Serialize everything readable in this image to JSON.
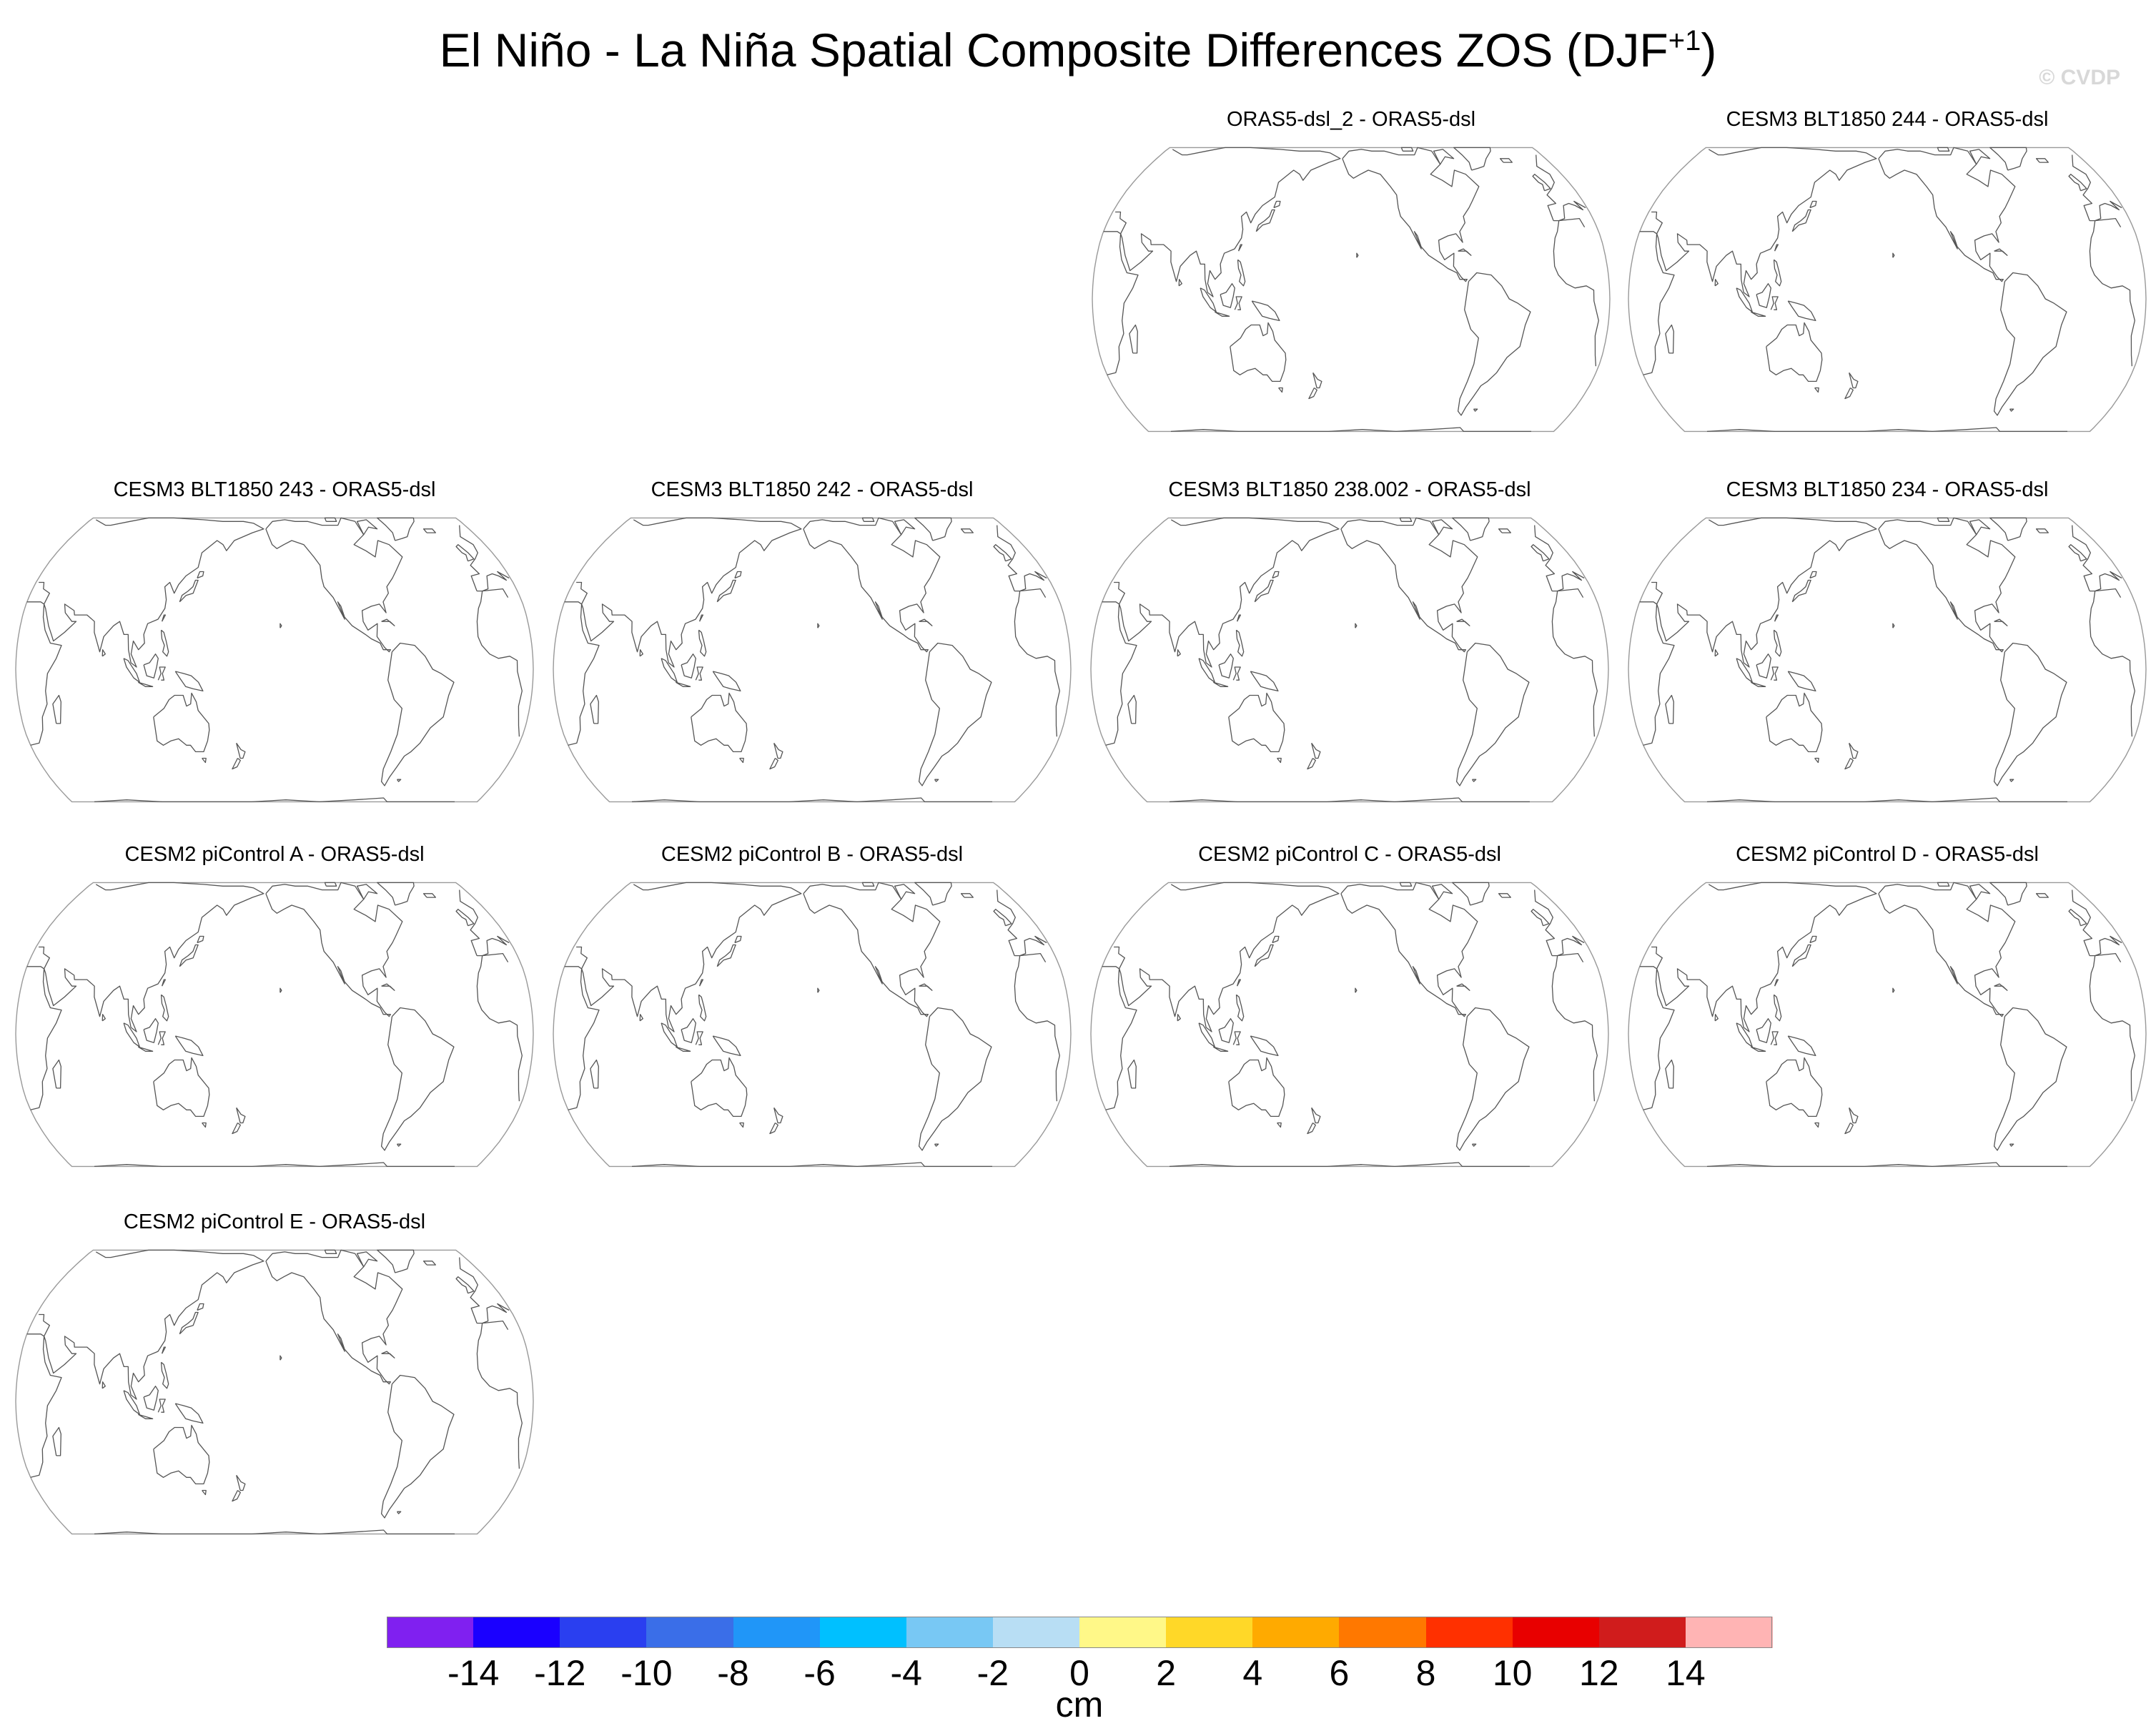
{
  "title": {
    "main": "El Niño - La Niña Spatial Composite Differences ZOS (DJF",
    "superscript": "+1",
    "close": ")"
  },
  "watermark": "© CVDP",
  "panels": [
    {
      "label": "ORAS5-dsl_2 - ORAS5-dsl"
    },
    {
      "label": "CESM3 BLT1850 244 - ORAS5-dsl"
    },
    {
      "label": "CESM3 BLT1850 243 - ORAS5-dsl"
    },
    {
      "label": "CESM3 BLT1850 242 - ORAS5-dsl"
    },
    {
      "label": "CESM3 BLT1850 238.002 - ORAS5-dsl"
    },
    {
      "label": "CESM3 BLT1850 234 - ORAS5-dsl"
    },
    {
      "label": "CESM2 piControl A - ORAS5-dsl"
    },
    {
      "label": "CESM2 piControl B - ORAS5-dsl"
    },
    {
      "label": "CESM2 piControl C - ORAS5-dsl"
    },
    {
      "label": "CESM2 piControl D - ORAS5-dsl"
    },
    {
      "label": "CESM2 piControl E - ORAS5-dsl"
    }
  ],
  "colorbar": {
    "units": "cm",
    "ticks": [
      "-14",
      "-12",
      "-10",
      "-8",
      "-6",
      "-4",
      "-2",
      "0",
      "2",
      "4",
      "6",
      "8",
      "10",
      "12",
      "14"
    ],
    "colors": [
      "#8020f0",
      "#1a00ff",
      "#2a3ff0",
      "#3a6ee8",
      "#2096f8",
      "#00c0ff",
      "#78c8f4",
      "#b8def4",
      "#fff888",
      "#ffd828",
      "#ffaa00",
      "#ff7800",
      "#ff3000",
      "#e80000",
      "#d01c1c",
      "#ffb4b4"
    ]
  }
}
